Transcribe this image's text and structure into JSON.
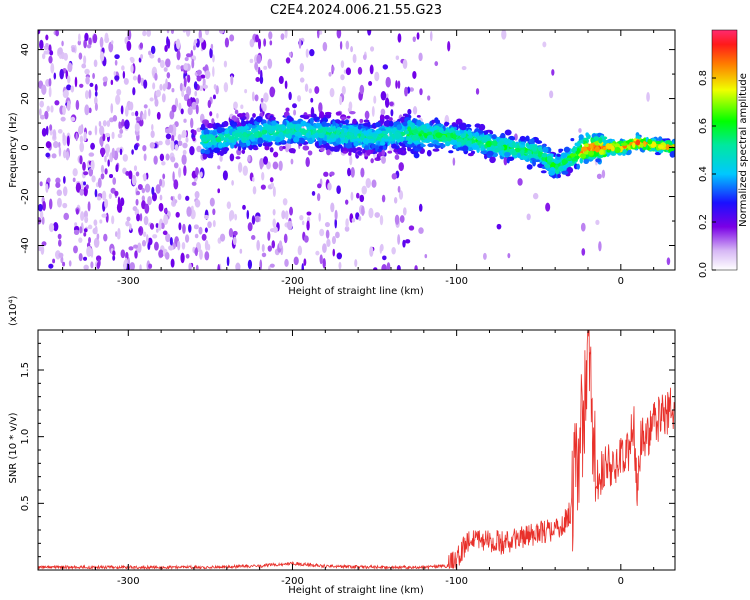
{
  "title": "C2E4.2024.006.21.55.G23",
  "chart_data": [
    {
      "type": "heatmap",
      "xlabel": "Height of straight line (km)",
      "ylabel": "Frequency (Hz)",
      "xlim": [
        -355,
        33
      ],
      "ylim": [
        -50,
        48
      ],
      "xticks": [
        -300,
        -200,
        -100,
        0
      ],
      "xtick_labels": [
        "-300",
        "-200",
        "-100",
        "0"
      ],
      "yticks": [
        -40,
        -20,
        0,
        20,
        40
      ],
      "ytick_labels": [
        "-40",
        "-20",
        "0",
        "20",
        "40"
      ],
      "colorbar": {
        "label": "Normalized spectral amplitude",
        "range": [
          0,
          1
        ],
        "ticks": [
          0.0,
          0.2,
          0.4,
          0.6,
          0.8
        ],
        "tick_labels": [
          "0.0",
          "0.2",
          "0.4",
          "0.6",
          "0.8"
        ],
        "colormap": "rainbow (white → violet → blue → cyan → green → yellow → red)"
      },
      "ridge": {
        "description": "strongest energy concentrated along frequency ~0 Hz, drifting from ~+7 Hz near -220 km to ~-10 Hz near -40 km, then back to ~0 Hz",
        "x": [
          -250,
          -220,
          -200,
          -180,
          -150,
          -130,
          -110,
          -90,
          -70,
          -50,
          -40,
          -30,
          -20,
          -10,
          0,
          10,
          20,
          33
        ],
        "y": [
          3,
          6,
          7,
          6,
          4,
          6,
          5,
          3,
          0,
          -2,
          -8,
          -4,
          0,
          0,
          0,
          2,
          1,
          0
        ]
      },
      "grid": false
    },
    {
      "type": "line",
      "xlabel": "Height of straight line (km)",
      "ylabel": "SNR (10 * v/v)",
      "y_multiplier": "(x10⁴)",
      "xlim": [
        -355,
        33
      ],
      "ylim": [
        0,
        1.8
      ],
      "xticks": [
        -300,
        -200,
        -100,
        0
      ],
      "xtick_labels": [
        "-300",
        "-200",
        "-100",
        "0"
      ],
      "yticks": [
        0.5,
        1.0,
        1.5
      ],
      "ytick_labels": [
        "0.5",
        "1.0",
        "1.5"
      ],
      "series": [
        {
          "color": "#e8302a",
          "x": [
            -355,
            -300,
            -250,
            -220,
            -200,
            -180,
            -150,
            -120,
            -105,
            -100,
            -95,
            -90,
            -80,
            -70,
            -60,
            -50,
            -40,
            -35,
            -30,
            -25,
            -22,
            -20,
            -18,
            -15,
            -10,
            -5,
            0,
            5,
            8,
            10,
            12,
            15,
            20,
            25,
            33
          ],
          "y": [
            0.02,
            0.02,
            0.02,
            0.03,
            0.05,
            0.03,
            0.02,
            0.02,
            0.03,
            0.08,
            0.18,
            0.25,
            0.22,
            0.2,
            0.25,
            0.28,
            0.3,
            0.35,
            0.45,
            1.0,
            1.2,
            1.75,
            1.3,
            0.65,
            0.8,
            0.75,
            0.85,
            0.9,
            1.1,
            0.5,
            1.0,
            1.0,
            1.1,
            1.15,
            1.22
          ]
        }
      ],
      "grid": false
    }
  ]
}
